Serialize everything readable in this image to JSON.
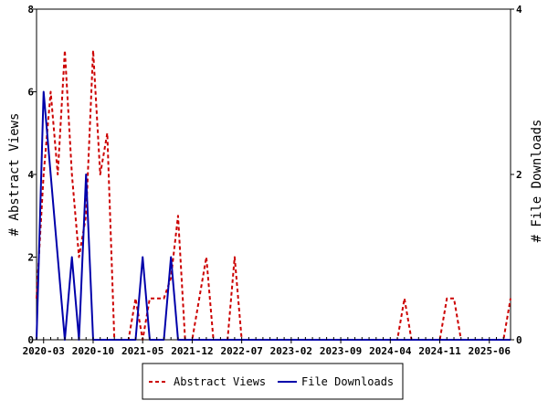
{
  "chart_data": {
    "type": "line",
    "x_ticks": [
      "2020-03",
      "2020-10",
      "2021-05",
      "2021-12",
      "2022-07",
      "2023-02",
      "2023-09",
      "2024-04",
      "2024-11",
      "2025-06"
    ],
    "x_range": [
      "2020-02",
      "2025-09"
    ],
    "y_left": {
      "label": "# Abstract Views",
      "range": [
        0,
        8
      ],
      "ticks": [
        "0",
        "2",
        "4",
        "6",
        "8"
      ]
    },
    "y_right": {
      "label": "# File Downloads",
      "range": [
        0,
        4
      ],
      "ticks": [
        "0",
        "2",
        "4"
      ]
    },
    "grid": false,
    "legend_position": "bottom-center",
    "series": [
      {
        "name": "Abstract Views",
        "axis": "left",
        "style": "dashed",
        "color": "#cc0000",
        "points": [
          [
            "2020-02",
            1
          ],
          [
            "2020-03",
            4
          ],
          [
            "2020-04",
            6
          ],
          [
            "2020-05",
            4
          ],
          [
            "2020-06",
            7
          ],
          [
            "2020-07",
            4
          ],
          [
            "2020-08",
            2
          ],
          [
            "2020-09",
            3
          ],
          [
            "2020-10",
            7
          ],
          [
            "2020-11",
            4
          ],
          [
            "2020-12",
            5
          ],
          [
            "2021-01",
            0
          ],
          [
            "2021-02",
            0
          ],
          [
            "2021-03",
            0
          ],
          [
            "2021-04",
            1
          ],
          [
            "2021-05",
            0
          ],
          [
            "2021-06",
            1
          ],
          [
            "2021-07",
            1
          ],
          [
            "2021-08",
            1
          ],
          [
            "2021-09",
            1.5
          ],
          [
            "2021-10",
            3
          ],
          [
            "2021-11",
            0
          ],
          [
            "2021-12",
            0
          ],
          [
            "2022-01",
            1
          ],
          [
            "2022-02",
            2
          ],
          [
            "2022-03",
            0
          ],
          [
            "2022-04",
            0
          ],
          [
            "2022-05",
            0
          ],
          [
            "2022-06",
            2
          ],
          [
            "2022-07",
            0
          ],
          [
            "2022-08",
            0
          ],
          [
            "2024-05",
            0
          ],
          [
            "2024-06",
            1
          ],
          [
            "2024-07",
            0
          ],
          [
            "2024-11",
            0
          ],
          [
            "2024-12",
            1
          ],
          [
            "2025-01",
            1
          ],
          [
            "2025-02",
            0
          ],
          [
            "2025-08",
            0
          ],
          [
            "2025-09",
            1
          ]
        ]
      },
      {
        "name": "File Downloads",
        "axis": "right",
        "style": "solid",
        "color": "#0000aa",
        "points": [
          [
            "2020-02",
            0
          ],
          [
            "2020-03",
            3
          ],
          [
            "2020-04",
            2
          ],
          [
            "2020-05",
            1
          ],
          [
            "2020-06",
            0
          ],
          [
            "2020-07",
            1
          ],
          [
            "2020-08",
            0
          ],
          [
            "2020-09",
            2
          ],
          [
            "2020-10",
            0
          ],
          [
            "2020-11",
            0
          ],
          [
            "2020-12",
            0
          ],
          [
            "2021-01",
            0
          ],
          [
            "2021-02",
            0
          ],
          [
            "2021-03",
            0
          ],
          [
            "2021-04",
            0
          ],
          [
            "2021-05",
            1
          ],
          [
            "2021-06",
            0
          ],
          [
            "2021-07",
            0
          ],
          [
            "2021-08",
            0
          ],
          [
            "2021-09",
            1
          ],
          [
            "2021-10",
            0
          ],
          [
            "2025-09",
            0
          ]
        ]
      }
    ]
  }
}
